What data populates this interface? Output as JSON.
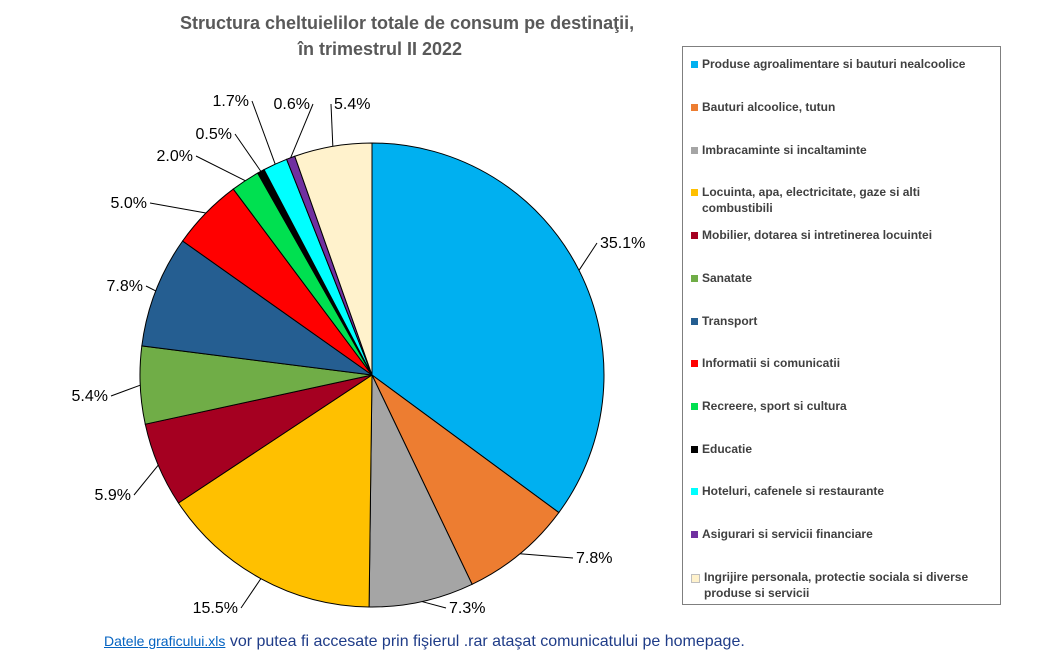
{
  "chart_data": {
    "type": "pie",
    "title": "Structura cheltuielilor totale de consum pe destinaţii,",
    "subtitle": "în trimestrul II 2022",
    "label_suffix": "%",
    "slices": [
      {
        "label": "Produse agroalimentare si bauturi nealcoolice",
        "value": 35.1,
        "color": "#00b0f0"
      },
      {
        "label": "Bauturi alcoolice, tutun",
        "value": 7.8,
        "color": "#ed7d31"
      },
      {
        "label": "Imbracaminte si incaltaminte",
        "value": 7.3,
        "color": "#a5a5a5"
      },
      {
        "label": "Locuinta, apa, electricitate, gaze si alti combustibili",
        "value": 15.5,
        "color": "#ffc000"
      },
      {
        "label": "Mobilier, dotarea si intretinerea locuintei",
        "value": 5.9,
        "color": "#a50021"
      },
      {
        "label": "Sanatate",
        "value": 5.4,
        "color": "#70ad47"
      },
      {
        "label": "Transport",
        "value": 7.8,
        "color": "#255e91"
      },
      {
        "label": "Informatii si comunicatii",
        "value": 5.0,
        "color": "#ff0000"
      },
      {
        "label": "Recreere, sport si cultura",
        "value": 2.0,
        "color": "#00e050"
      },
      {
        "label": "Educatie",
        "value": 0.5,
        "color": "#000000"
      },
      {
        "label": "Hoteluri, cafenele si restaurante",
        "value": 1.7,
        "color": "#00ffff"
      },
      {
        "label": "Asigurari si servicii financiare",
        "value": 0.6,
        "color": "#7030a0"
      },
      {
        "label": "Ingrijire personala, protectie sociala si diverse produse si servicii",
        "value": 5.4,
        "color": "#fff2cc"
      }
    ],
    "legend_placement": "right"
  },
  "footer": {
    "link_text": "Datele graficului.xls",
    "text": " vor putea fi accesate prin fişierul .rar  ataşat comunicatului pe homepage."
  }
}
